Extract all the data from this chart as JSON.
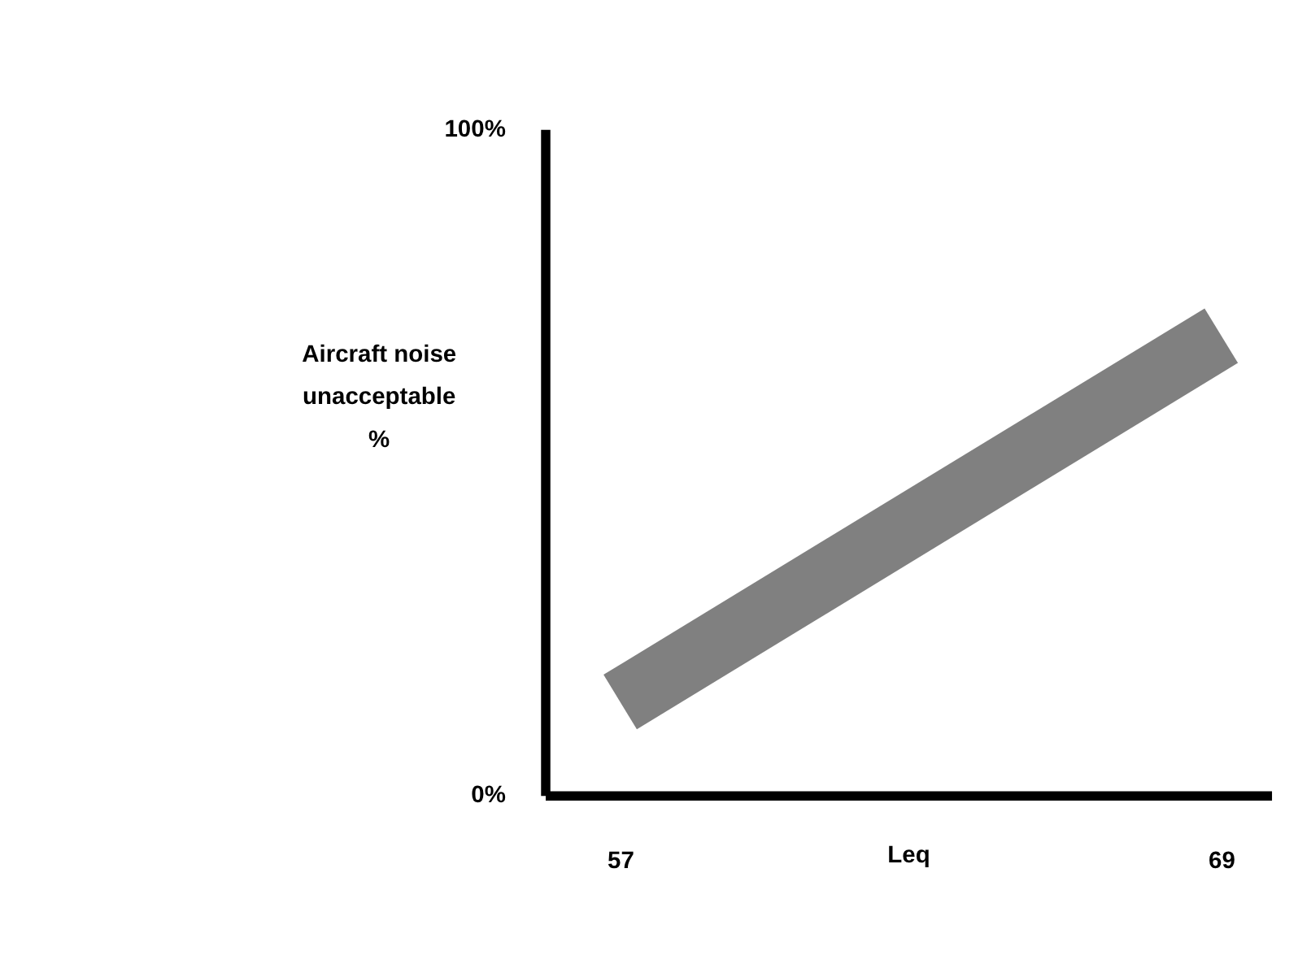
{
  "chart_data": {
    "type": "line",
    "xlabel": "Leq",
    "ylabel": "Aircraft noise\nunacceptable\n%",
    "x": [
      57,
      69
    ],
    "series": [
      {
        "color": "#808080",
        "values": [
          14,
          69
        ]
      }
    ],
    "xlim": [
      55.5,
      70
    ],
    "xticks": [
      57,
      69
    ],
    "ylim": [
      0,
      100
    ],
    "yticks": [
      {
        "value": 0,
        "label": "0%"
      },
      {
        "value": 100,
        "label": "100%"
      }
    ],
    "grid": false,
    "legend": false,
    "marker": "none",
    "line_style": "solid"
  }
}
